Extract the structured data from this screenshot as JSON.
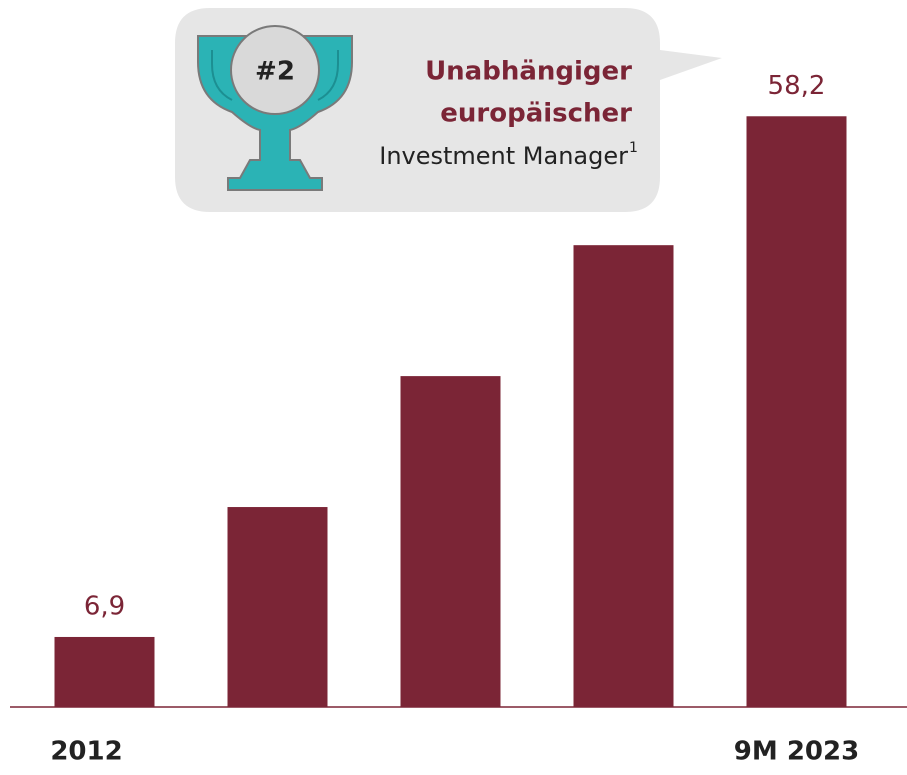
{
  "chart_data": {
    "type": "bar",
    "categories": [
      "2012",
      null,
      null,
      null,
      "9M 2023"
    ],
    "values": [
      6.9,
      19.7,
      32.6,
      45.5,
      58.2
    ],
    "value_labels": [
      "6,9",
      null,
      null,
      null,
      "58,2"
    ],
    "color": "#7b2536",
    "ylim": [
      0,
      60
    ],
    "annotation": {
      "rank": "#2",
      "lines": [
        "Unabhängiger",
        "europäischer",
        "Investment Manager"
      ],
      "footnote": "1"
    }
  }
}
